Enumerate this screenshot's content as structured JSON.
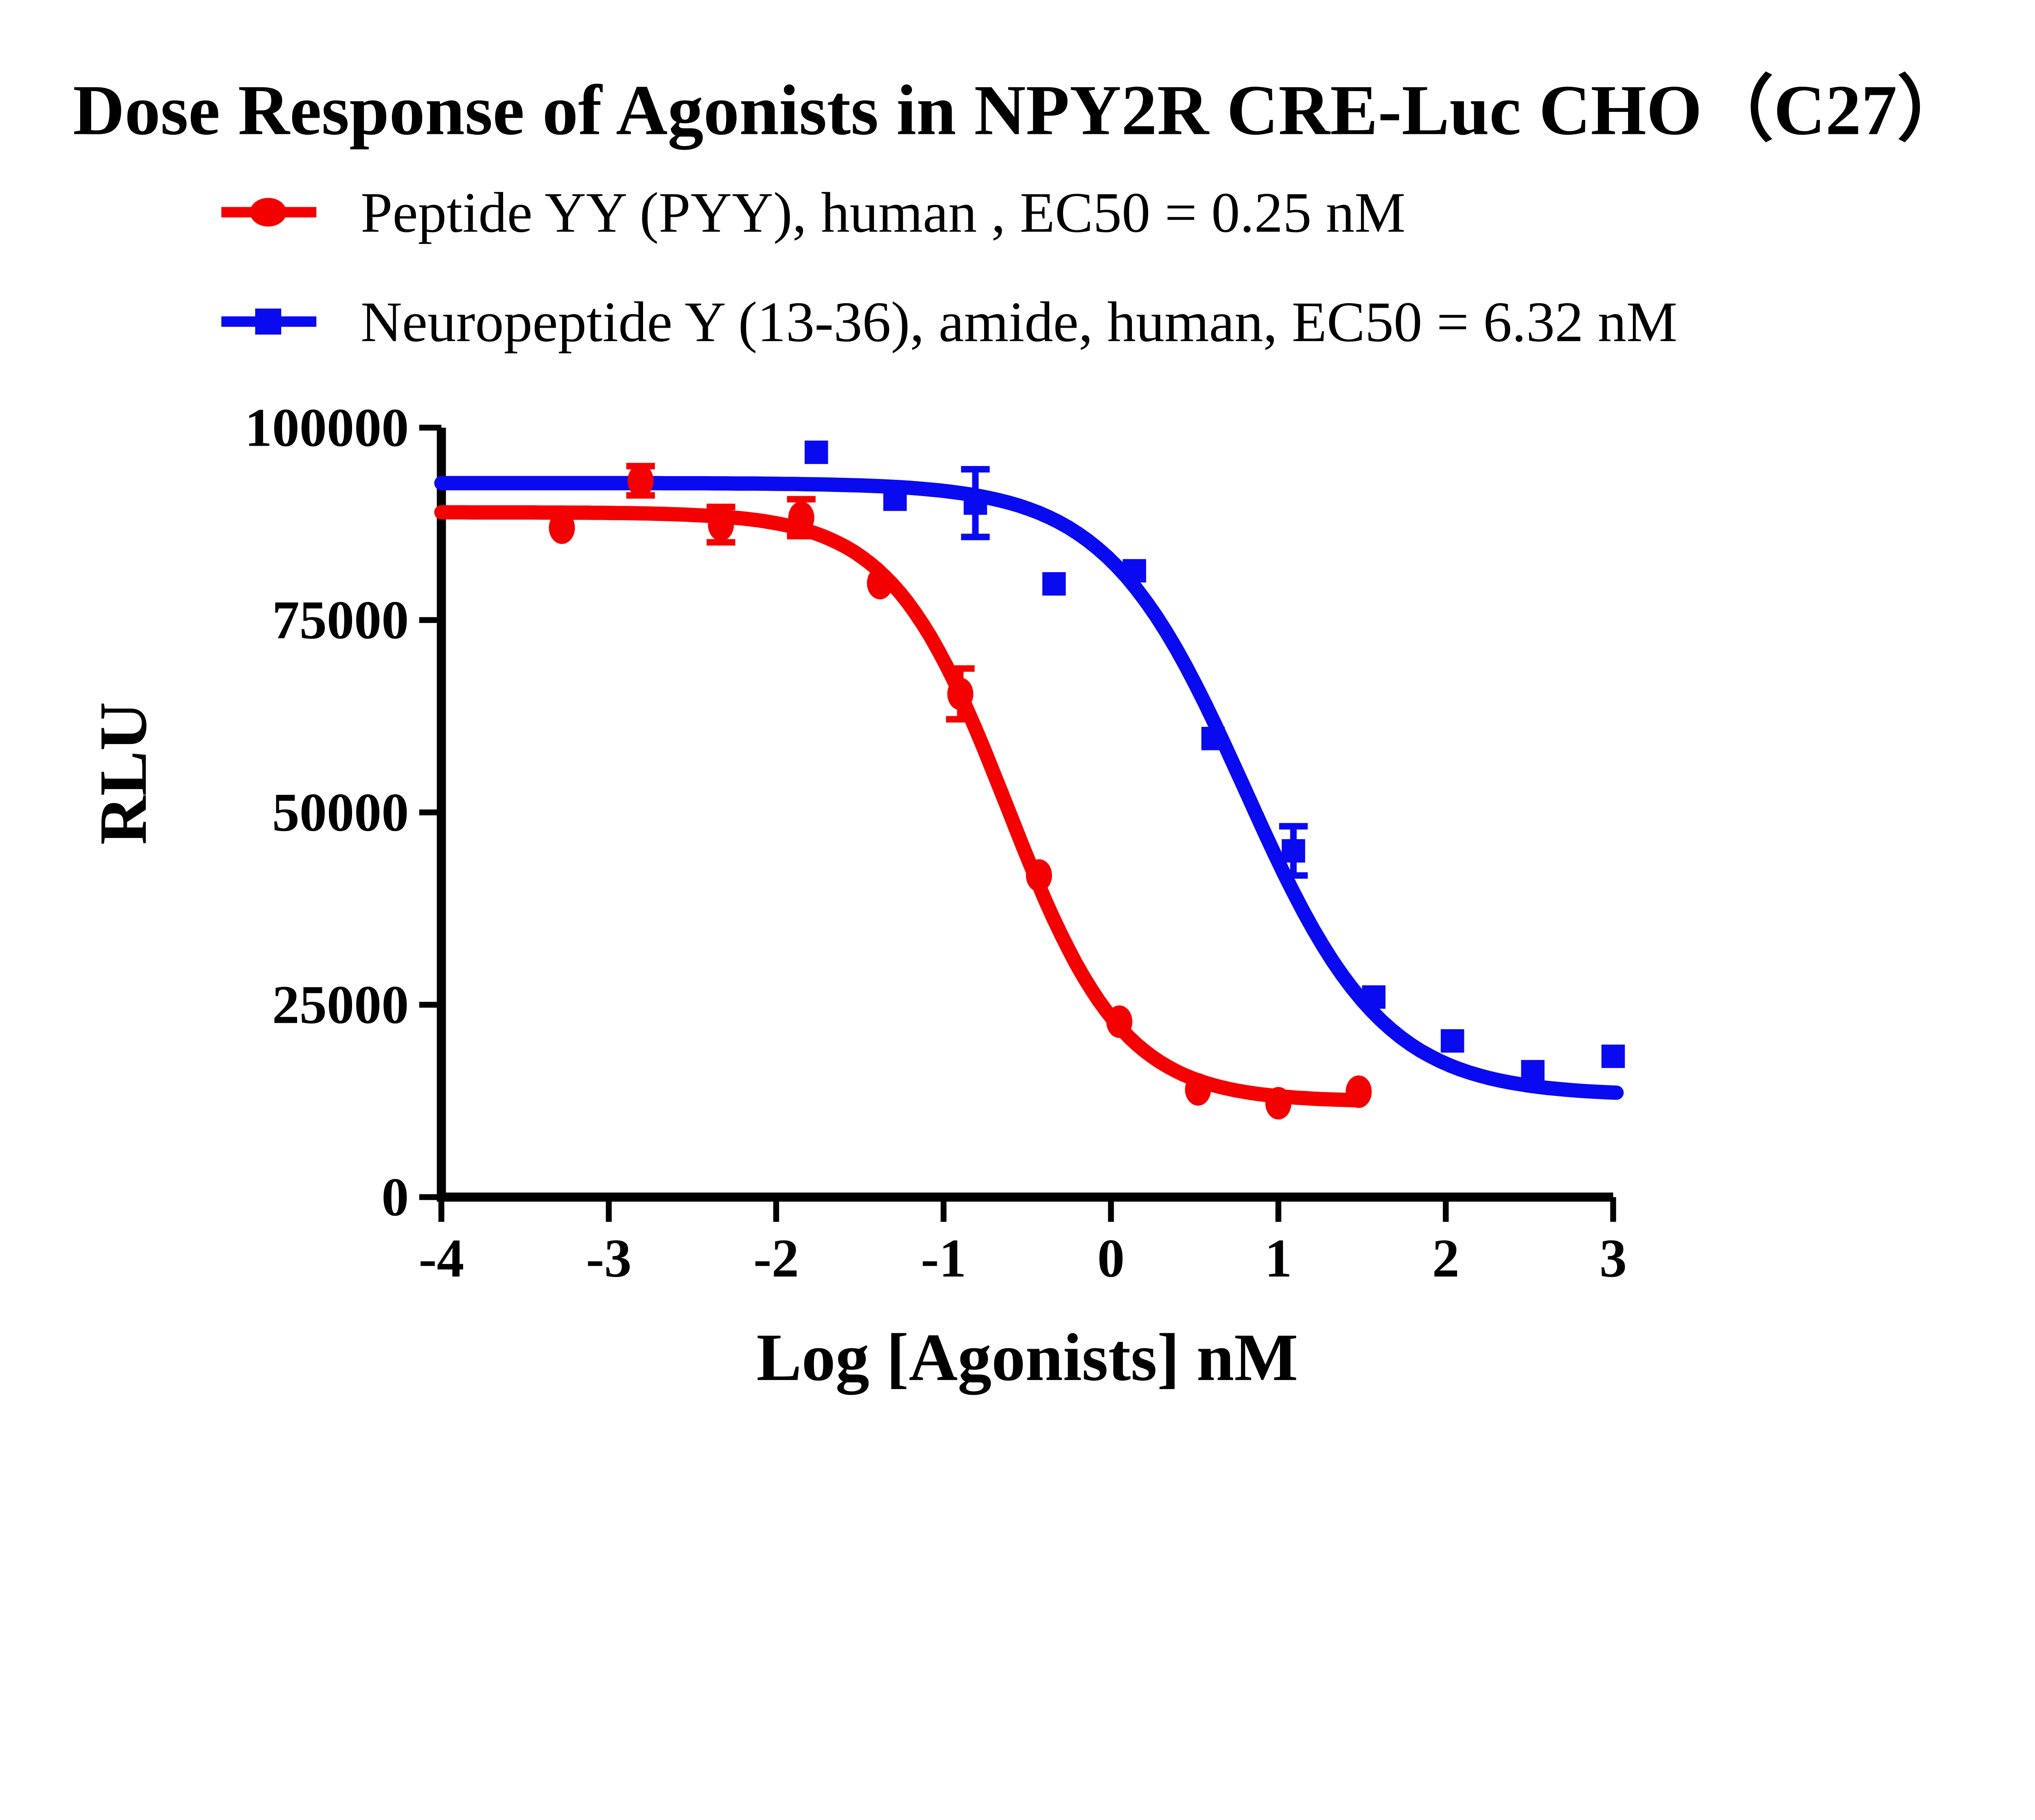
{
  "title": "Dose Response of Agonists in NPY2R CRE-Luc CHO（C27）",
  "legend": {
    "items": [
      {
        "label": "Peptide YY (PYY), human , EC50 = 0.25 nM",
        "marker": "circle-on-line",
        "color": "#f50000"
      },
      {
        "label": "Neuropeptide Y (13-36), amide, human, EC50 = 6.32 nM",
        "marker": "square-on-line",
        "color": "#0a0af0"
      }
    ]
  },
  "colors": {
    "red_series": "#f50000",
    "blue_series": "#0a0af0",
    "axis": "#000000",
    "background": "#ffffff"
  },
  "chart_data": {
    "type": "scatter",
    "title": "Dose Response of Agonists in NPY2R CRE-Luc CHO（C27）",
    "xlabel": "Log [Agonists] nM",
    "ylabel": "RLU",
    "xlim": [
      -4,
      3
    ],
    "ylim": [
      0,
      100000
    ],
    "xticks": [
      -4,
      -3,
      -2,
      -1,
      0,
      1,
      2,
      3
    ],
    "yticks": [
      0,
      25000,
      50000,
      75000,
      100000
    ],
    "grid": false,
    "legend_position": "top-left-above-plot",
    "series": [
      {
        "name": "Peptide YY (PYY), human",
        "ec50_nM": 0.25,
        "color": "#f50000",
        "marker": "circle",
        "x": [
          -3.28,
          -2.81,
          -2.33,
          -1.85,
          -1.38,
          -0.9,
          -0.43,
          0.05,
          0.52,
          1.0,
          1.48
        ],
        "y": [
          87000,
          93100,
          87400,
          88300,
          79800,
          65400,
          41800,
          22800,
          14000,
          12200,
          13700
        ],
        "yerr": [
          0,
          1900,
          2300,
          2400,
          0,
          3300,
          0,
          0,
          0,
          0,
          0
        ],
        "fit": {
          "model": "4PL-inhibition",
          "top": 89000,
          "bottom": 12400,
          "log_ec50": -0.62,
          "hill": 1.25,
          "x_start": -4,
          "x_end": 1.48
        }
      },
      {
        "name": "Neuropeptide Y (13-36), amide, human",
        "ec50_nM": 6.32,
        "color": "#0a0af0",
        "marker": "square",
        "x": [
          -1.76,
          -1.29,
          -0.81,
          -0.34,
          0.14,
          0.61,
          1.09,
          1.57,
          2.04,
          2.52,
          3.0
        ],
        "y": [
          96800,
          90700,
          90200,
          79700,
          81400,
          59600,
          45000,
          26000,
          20300,
          16300,
          18300
        ],
        "yerr": [
          0,
          0,
          4400,
          0,
          0,
          0,
          3200,
          0,
          0,
          0,
          0
        ],
        "fit": {
          "model": "4PL-inhibition",
          "top": 92800,
          "bottom": 13200,
          "log_ec50": 0.8,
          "hill": 1.05,
          "x_start": -4,
          "x_end": 3.02
        }
      }
    ]
  }
}
